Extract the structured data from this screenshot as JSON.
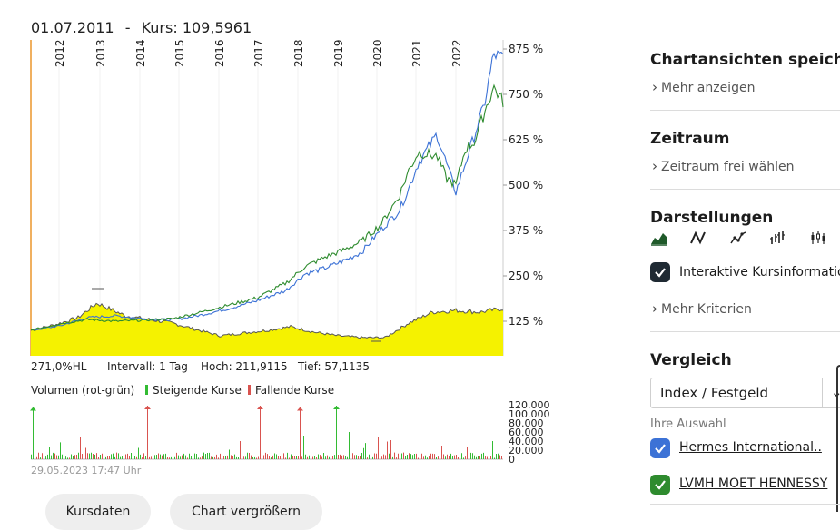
{
  "header": {
    "date": "01.07.2011",
    "separator": "-",
    "kurs_label": "Kurs:",
    "kurs_value": "109,5961"
  },
  "chart_data": {
    "type": "line",
    "x_ticks": [
      "2012",
      "2013",
      "2014",
      "2015",
      "2016",
      "2017",
      "2018",
      "2019",
      "2020",
      "2021",
      "2022"
    ],
    "y_ticks": [
      "875 %",
      "750 %",
      "625 %",
      "500 %",
      "375 %",
      "250 %",
      "125 %"
    ],
    "ylim": [
      30,
      900
    ],
    "series": [
      {
        "name": "Hermes International",
        "color": "#3c72d6",
        "x": [
          0,
          0.06,
          0.12,
          0.18,
          0.24,
          0.3,
          0.36,
          0.42,
          0.48,
          0.54,
          0.58,
          0.62,
          0.66,
          0.7,
          0.74,
          0.78,
          0.8,
          0.82,
          0.86,
          0.88,
          0.9,
          0.92,
          0.94,
          0.96,
          0.98,
          1.0
        ],
        "y": [
          100,
          112,
          135,
          140,
          132,
          128,
          142,
          160,
          182,
          210,
          255,
          270,
          290,
          315,
          375,
          430,
          490,
          560,
          640,
          560,
          480,
          560,
          640,
          720,
          860,
          850
        ]
      },
      {
        "name": "LVMH MOET HENNESSY",
        "color": "#2e8b2e",
        "x": [
          0,
          0.06,
          0.12,
          0.18,
          0.24,
          0.3,
          0.36,
          0.42,
          0.48,
          0.54,
          0.58,
          0.62,
          0.66,
          0.7,
          0.74,
          0.78,
          0.8,
          0.82,
          0.86,
          0.88,
          0.9,
          0.92,
          0.94,
          0.96,
          0.98,
          1.0
        ],
        "y": [
          100,
          118,
          130,
          125,
          128,
          132,
          150,
          170,
          190,
          230,
          275,
          300,
          320,
          345,
          390,
          470,
          540,
          590,
          580,
          520,
          500,
          600,
          620,
          700,
          770,
          730
        ]
      },
      {
        "name": "Index / Festgeld",
        "color": "#555555",
        "fill": "#f5f200",
        "x": [
          0,
          0.05,
          0.1,
          0.14,
          0.2,
          0.3,
          0.4,
          0.5,
          0.55,
          0.6,
          0.65,
          0.7,
          0.75,
          0.8,
          0.85,
          0.9,
          0.95,
          1.0
        ],
        "y": [
          100,
          115,
          135,
          175,
          140,
          120,
          85,
          100,
          110,
          95,
          85,
          80,
          80,
          120,
          150,
          155,
          150,
          160
        ]
      }
    ],
    "stats": {
      "hl": "271,0%HL",
      "interval": "Intervall: 1 Tag",
      "hoch": "Hoch: 211,9115",
      "tief": "Tief: 57,1135"
    },
    "volume": {
      "title": "Volumen (rot-grün)",
      "rising_label": "Steigende Kurse",
      "falling_label": "Fallende Kurse",
      "y_ticks": [
        "120.000",
        "100.000",
        "80.000",
        "60.000",
        "40.000",
        "20.000",
        "0"
      ],
      "ylim": [
        0,
        120000
      ]
    }
  },
  "timestamp": "29.05.2023 17:47 Uhr",
  "buttons": {
    "kursdaten": "Kursdaten",
    "chart_vergroessern": "Chart vergrößern"
  },
  "sidebar": {
    "views": {
      "title": "Chartansichten speicher",
      "link": "Mehr anzeigen"
    },
    "zeitraum": {
      "title": "Zeitraum",
      "link": "Zeitraum frei wählen"
    },
    "darstellungen": {
      "title": "Darstellungen",
      "icons": [
        "area-chart-icon",
        "line-chart-icon",
        "dot-line-chart-icon",
        "ohlc-bars-icon",
        "candlestick-icon"
      ],
      "interactive_label": "Interaktive Kursinformatio",
      "more_link": "Mehr Kriterien"
    },
    "vergleich": {
      "title": "Vergleich",
      "select_value": "Index / Festgeld",
      "selection_label": "Ihre Auswahl",
      "items": [
        {
          "label": "Hermes International..",
          "color": "#3c72d6"
        },
        {
          "label": "LVMH MOET HENNESSY",
          "color": "#2e8b2e"
        }
      ]
    }
  },
  "colors": {
    "rising": "#33bb33",
    "falling": "#d9534f",
    "dark_check": "#1f2a33"
  }
}
